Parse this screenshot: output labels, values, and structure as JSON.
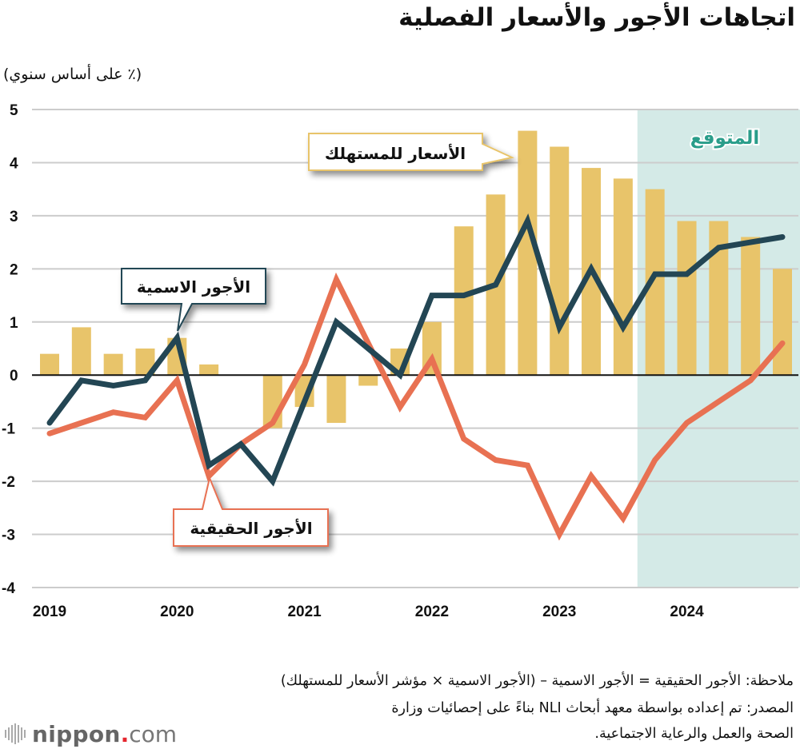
{
  "title": "اتجاهات الأجور والأسعار الفصلية",
  "unit_label": "(٪ على أساس سنوي)",
  "forecast_label": "المتوقع",
  "callouts": {
    "cpi": "الأسعار للمستهلك",
    "nominal": "الأجور الاسمية",
    "real": "الأجور الحقيقية"
  },
  "notes": {
    "line1": "ملاحظة: الأجور الحقيقية = الأجور الاسمية – (الأجور الاسمية × مؤشر الأسعار للمستهلك)",
    "line2": "المصدر: تم إعداده بواسطة معهد أبحاث NLI بناءً على إحصائيات وزارة",
    "line3": "الصحة والعمل والرعاية الاجتماعية."
  },
  "logo": {
    "name": "nippon",
    "dot": ".",
    "tld": "com"
  },
  "colors": {
    "cpi_bar": "#e8c46a",
    "nominal_line": "#234654",
    "real_line": "#e87152",
    "forecast_bg": "#d4eae7",
    "forecast_text": "#2a9d8a",
    "grid": "#cccccc"
  },
  "chart_data": {
    "type": "bar+line",
    "title": "اتجاهات الأجور والأسعار الفصلية",
    "ylabel": "(٪ على أساس سنوي)",
    "xlabel": "",
    "ylim": [
      -4,
      5
    ],
    "yticks": [
      5,
      4,
      3,
      2,
      1,
      0,
      -1,
      -2,
      -3,
      -4
    ],
    "grid": true,
    "x_tick_labels": [
      "2019",
      "2020",
      "2021",
      "2022",
      "2023",
      "2024"
    ],
    "x_tick_quarter_index": [
      0,
      4,
      8,
      12,
      16,
      20
    ],
    "categories": [
      "2019Q1",
      "2019Q2",
      "2019Q3",
      "2019Q4",
      "2020Q1",
      "2020Q2",
      "2020Q3",
      "2020Q4",
      "2021Q1",
      "2021Q2",
      "2021Q3",
      "2021Q4",
      "2022Q1",
      "2022Q2",
      "2022Q3",
      "2022Q4",
      "2023Q1",
      "2023Q2",
      "2023Q3",
      "2023Q4",
      "2024Q1",
      "2024Q2",
      "2024Q3",
      "2024Q4"
    ],
    "forecast_start_index": 19,
    "series": [
      {
        "name": "الأسعار للمستهلك",
        "type": "bar",
        "values": [
          0.4,
          0.9,
          0.4,
          0.5,
          0.7,
          0.2,
          0.0,
          -1.0,
          -0.6,
          -0.9,
          -0.2,
          0.5,
          1.0,
          2.8,
          3.4,
          4.6,
          4.3,
          3.9,
          3.7,
          3.5,
          2.9,
          2.9,
          2.6,
          2.0
        ]
      },
      {
        "name": "الأجور الاسمية",
        "type": "line",
        "values": [
          -0.9,
          -0.1,
          -0.2,
          -0.1,
          0.7,
          -1.7,
          -1.3,
          -2.0,
          -0.5,
          1.0,
          0.5,
          0.0,
          1.5,
          1.5,
          1.7,
          2.9,
          0.9,
          2.0,
          0.9,
          1.9,
          1.9,
          2.4,
          2.5,
          2.6
        ]
      },
      {
        "name": "الأجور الحقيقية",
        "type": "line",
        "values": [
          -1.1,
          -0.9,
          -0.7,
          -0.8,
          -0.1,
          -1.9,
          -1.3,
          -0.9,
          0.2,
          1.8,
          0.6,
          -0.6,
          0.3,
          -1.2,
          -1.6,
          -1.7,
          -3.0,
          -1.9,
          -2.7,
          -1.6,
          -0.9,
          -0.5,
          -0.1,
          0.6
        ]
      }
    ],
    "annotations": [
      "المتوقع",
      "الأسعار للمستهلك",
      "الأجور الاسمية",
      "الأجور الحقيقية"
    ]
  }
}
